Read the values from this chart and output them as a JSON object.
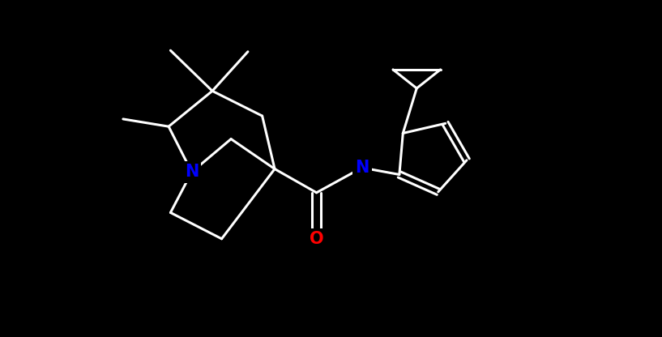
{
  "bg_color": "#000000",
  "bond_color": "#ffffff",
  "N_color": "#0000ff",
  "O_color": "#ff0000",
  "lw": 2.2,
  "fig_width": 8.17,
  "fig_height": 4.16,
  "dpi": 100,
  "xlim": [
    0,
    8.17
  ],
  "ylim": [
    0,
    4.16
  ]
}
